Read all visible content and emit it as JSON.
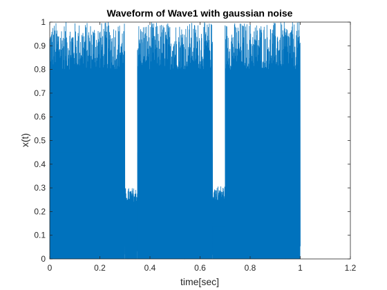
{
  "chart_data": {
    "type": "line",
    "title": "Waveform of Wave1 with gaussian noise",
    "xlabel": "time[sec]",
    "ylabel": "x(t)",
    "xlim": [
      0,
      1.2
    ],
    "ylim": [
      0,
      1
    ],
    "xticks": [
      "0",
      "0.2",
      "0.4",
      "0.6",
      "0.8",
      "1",
      "1.2"
    ],
    "yticks": [
      "0",
      "0.1",
      "0.2",
      "0.3",
      "0.4",
      "0.5",
      "0.6",
      "0.7",
      "0.8",
      "0.9",
      "1"
    ],
    "grid": false,
    "series": [
      {
        "color": "#0072BD",
        "segments": [
          {
            "t_start": 0.0,
            "t_end": 0.3,
            "min": 0.0,
            "max": 1.0
          },
          {
            "t_start": 0.3,
            "t_end": 0.35,
            "min": 0.0,
            "max": 0.3
          },
          {
            "t_start": 0.35,
            "t_end": 0.65,
            "min": 0.0,
            "max": 1.0
          },
          {
            "t_start": 0.65,
            "t_end": 0.7,
            "min": 0.0,
            "max": 0.31
          },
          {
            "t_start": 0.7,
            "t_end": 1.0,
            "min": 0.0,
            "max": 1.0
          }
        ]
      }
    ]
  }
}
